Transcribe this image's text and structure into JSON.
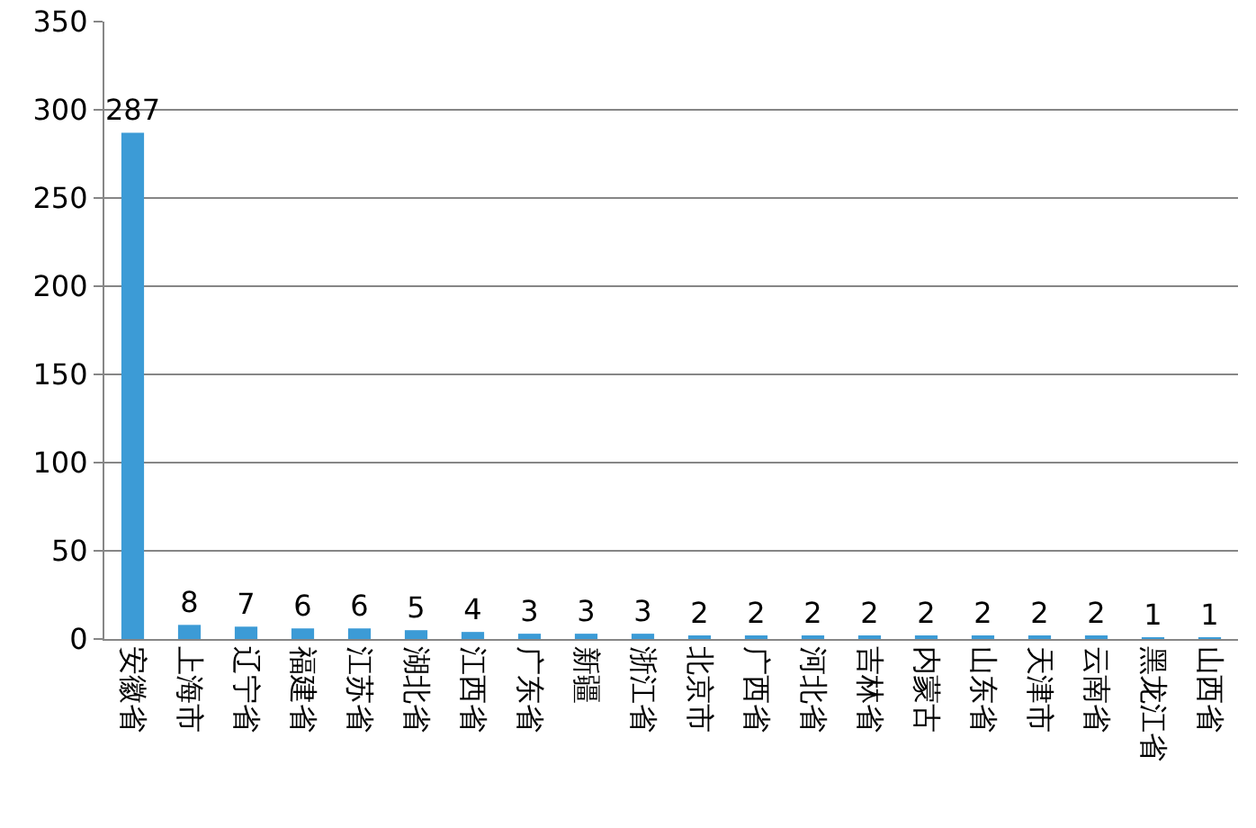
{
  "chart_data": {
    "type": "bar",
    "categories": [
      "安徽省",
      "上海市",
      "辽宁省",
      "福建省",
      "江苏省",
      "湖北省",
      "江西省",
      "广东省",
      "新疆",
      "浙江省",
      "北京市",
      "广西省",
      "河北省",
      "吉林省",
      "内蒙古",
      "山东省",
      "天津市",
      "云南省",
      "黑龙江省",
      "山西省"
    ],
    "values": [
      287,
      8,
      7,
      6,
      6,
      5,
      4,
      3,
      3,
      3,
      2,
      2,
      2,
      2,
      2,
      2,
      2,
      2,
      1,
      1
    ],
    "color": "#3c9bd6",
    "ylim": [
      0,
      350
    ],
    "yticks": [
      0,
      50,
      100,
      150,
      200,
      250,
      300,
      350
    ],
    "grid": "y",
    "data_labels": true,
    "legend": false
  }
}
